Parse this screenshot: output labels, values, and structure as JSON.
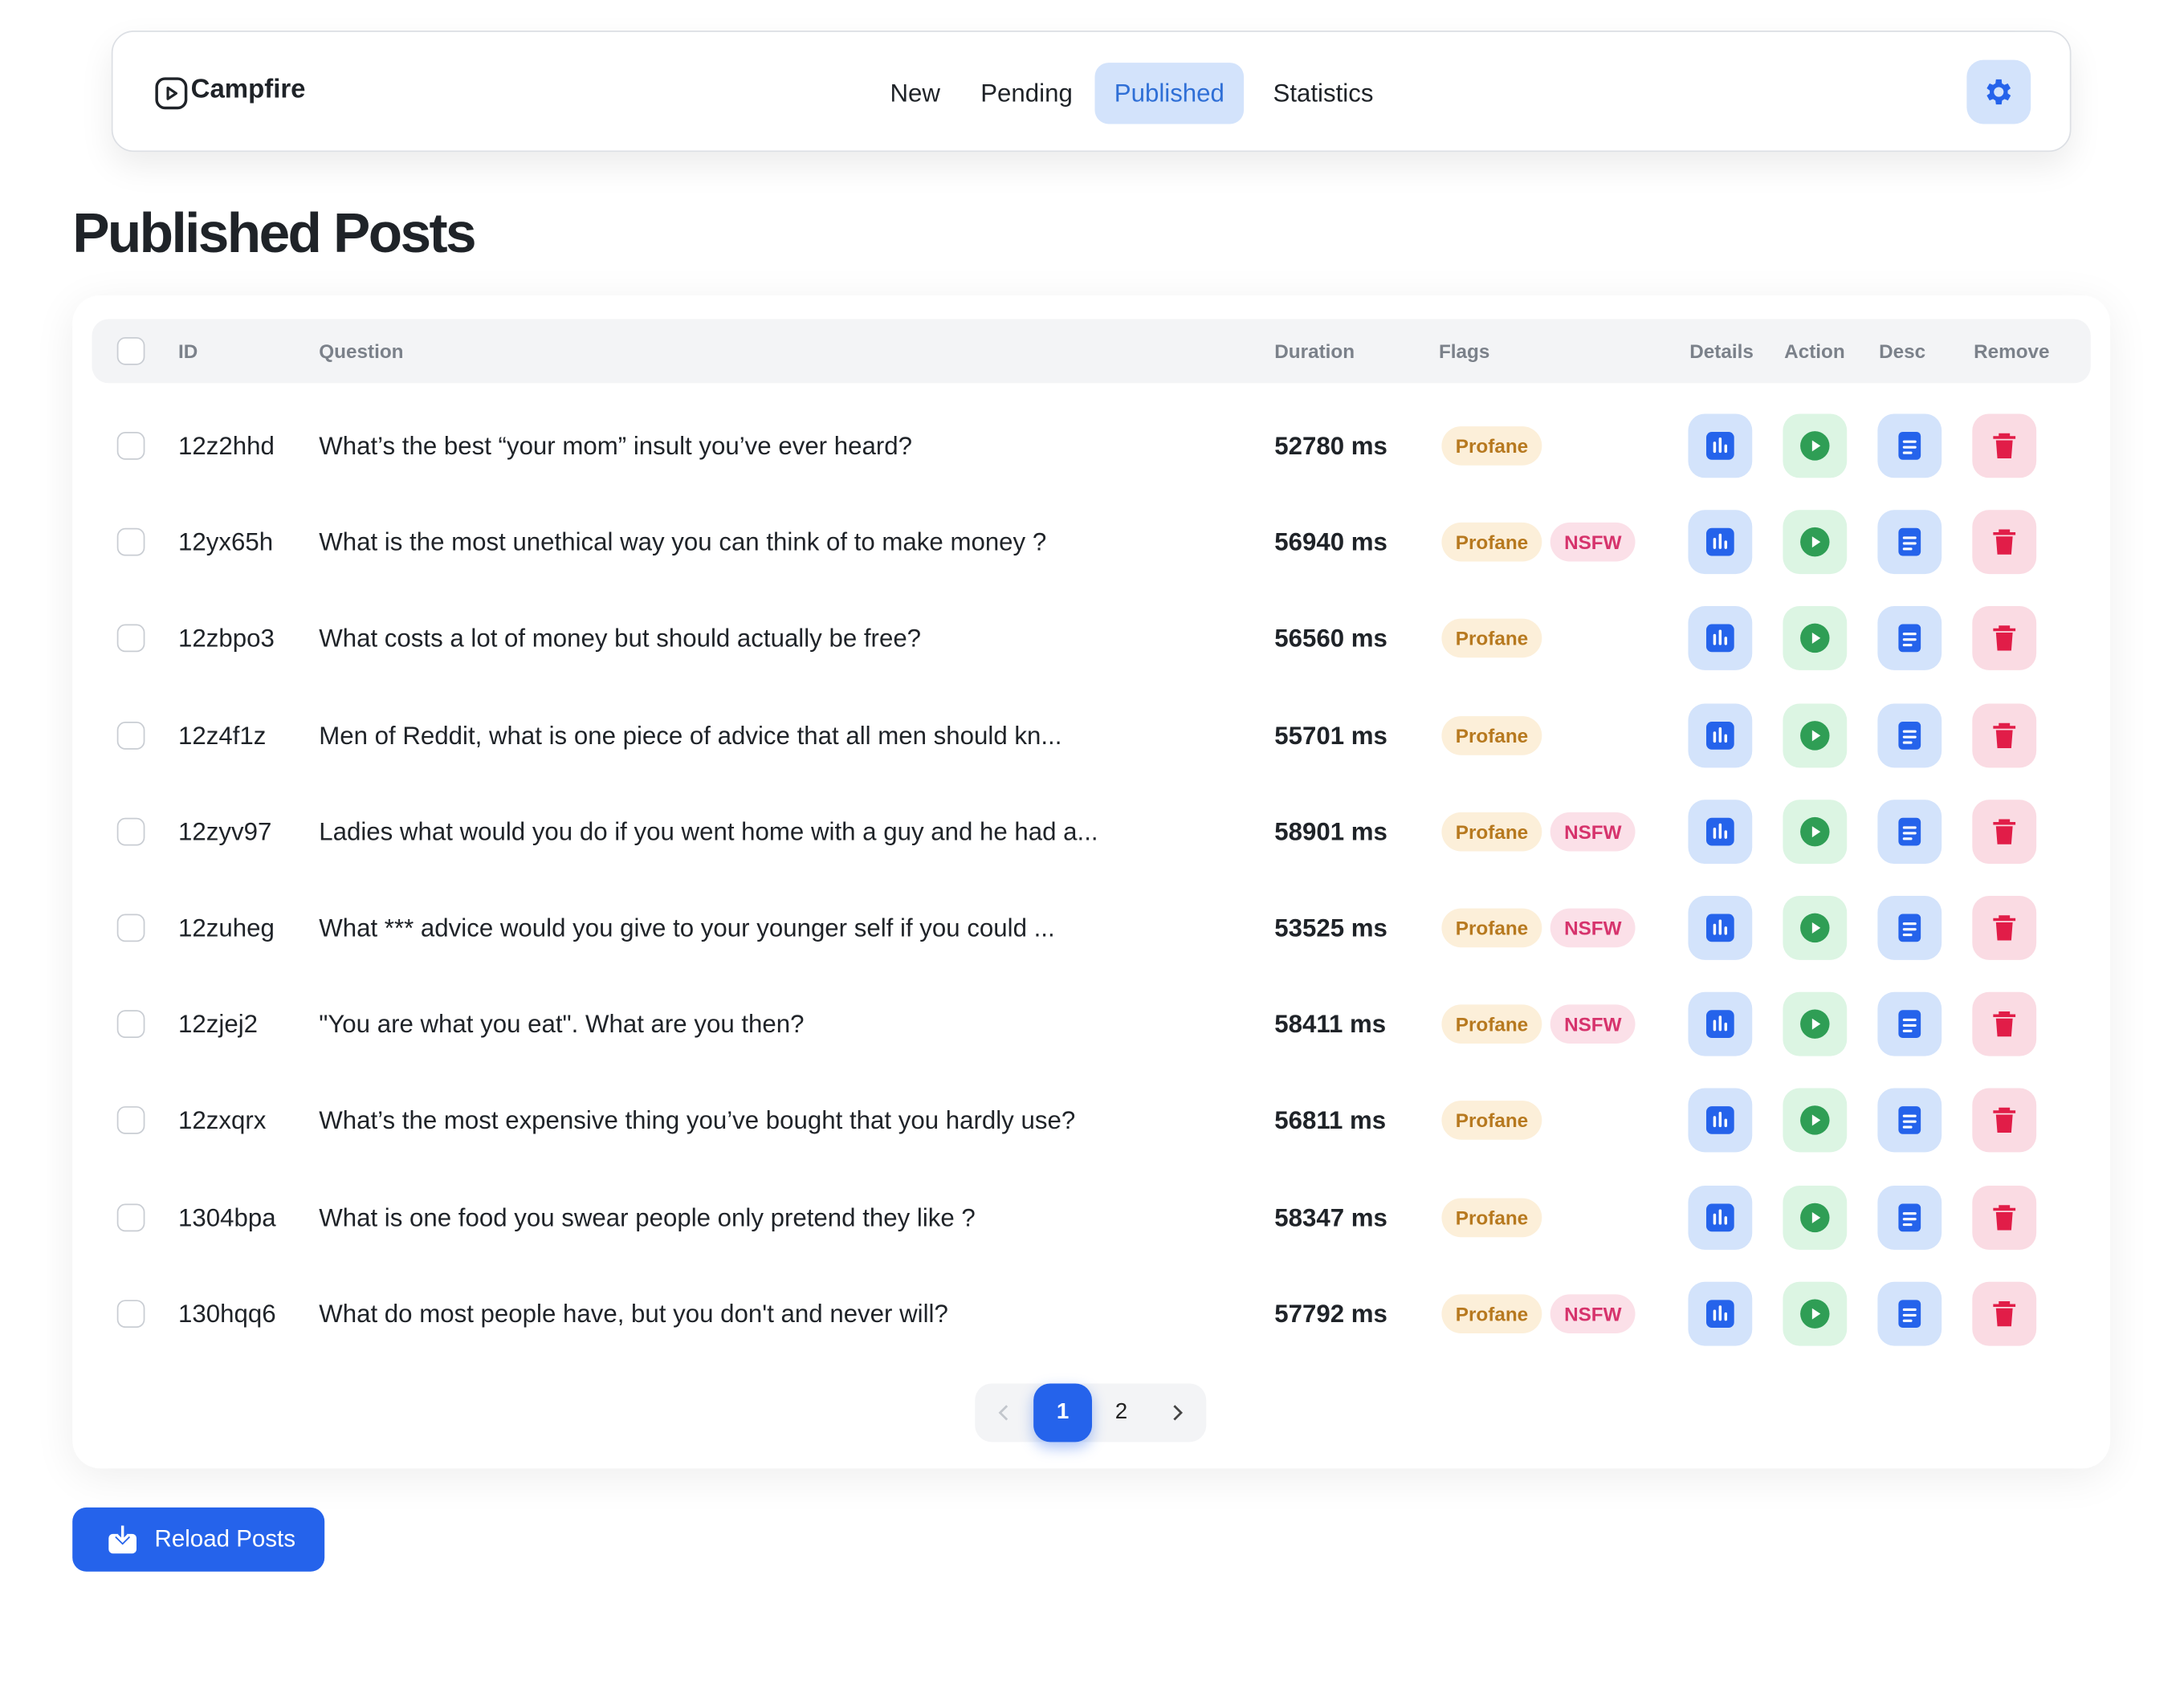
{
  "header": {
    "brand": "Campfire",
    "nav": [
      "New",
      "Pending",
      "Published",
      "Statistics"
    ],
    "active": 2
  },
  "page_title": "Published Posts",
  "table": {
    "columns": [
      "ID",
      "Question",
      "Duration",
      "Flags",
      "Details",
      "Action",
      "Desc",
      "Remove"
    ],
    "rows": [
      [
        "12z2hhd",
        "What’s the best “your mom” insult you’ve ever heard?",
        "52780 ms",
        [
          "Profane"
        ]
      ],
      [
        "12yx65h",
        "What is the most unethical way you can think of to make money ?",
        "56940 ms",
        [
          "Profane",
          "NSFW"
        ]
      ],
      [
        "12zbpo3",
        "What costs a lot of money but should actually be free?",
        "56560 ms",
        [
          "Profane"
        ]
      ],
      [
        "12z4f1z",
        "Men of Reddit, what is one piece of advice that all men should kn...",
        "55701 ms",
        [
          "Profane"
        ]
      ],
      [
        "12zyv97",
        "Ladies what would you do if you went home with a guy and he had a...",
        "58901 ms",
        [
          "Profane",
          "NSFW"
        ]
      ],
      [
        "12zuheg",
        "What *** advice would you give to your younger self if you could ...",
        "53525 ms",
        [
          "Profane",
          "NSFW"
        ]
      ],
      [
        "12zjej2",
        "\"You are what you eat\". What are you then?",
        "58411 ms",
        [
          "Profane",
          "NSFW"
        ]
      ],
      [
        "12zxqrx",
        "What’s the most expensive thing you’ve bought that you hardly use?",
        "56811 ms",
        [
          "Profane"
        ]
      ],
      [
        "1304bpa",
        "What is one food you swear people only pretend they like ?",
        "58347 ms",
        [
          "Profane"
        ]
      ],
      [
        "130hqq6",
        "What do most people have, but you don't and never will?",
        "57792 ms",
        [
          "Profane",
          "NSFW"
        ]
      ]
    ]
  },
  "pagination": {
    "pages": [
      "1",
      "2"
    ],
    "current": 0
  },
  "reload_button": "Reload Posts"
}
